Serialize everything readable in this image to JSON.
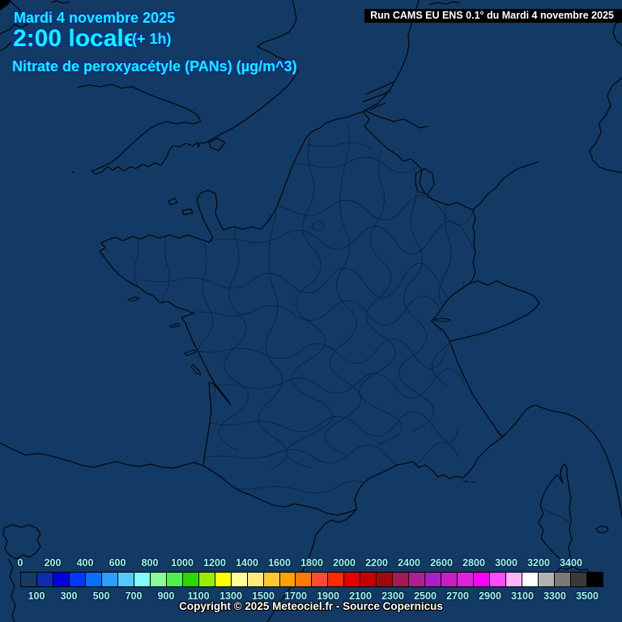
{
  "header": {
    "date": "Mardi 4 novembre 2025",
    "time": "2:00 locale",
    "offset": "(+ 1h)",
    "variable": "Nitrate de peroxyacétyle (PANs) (µg/m^3)"
  },
  "run_box": {
    "text": "Run CAMS EU ENS 0.1° du Mardi 4 novembre 2025"
  },
  "footer": {
    "copyright": "Copyright © 2025 Meteociel.fr - Source Copernicus"
  },
  "colors": {
    "background": "#123a64",
    "header_text": "#00ffff",
    "run_box_bg": "#000000",
    "run_box_text": "#ffffff",
    "legend_label": "#9ef2ee",
    "coastline": "#000000",
    "department_line": "#08223e",
    "copyright_text": "#ffffff"
  },
  "legend": {
    "unit": "µg/m^3",
    "top_labels": [
      "0",
      "200",
      "400",
      "600",
      "800",
      "1000",
      "1200",
      "1400",
      "1600",
      "1800",
      "2000",
      "2200",
      "2400",
      "2600",
      "2800",
      "3000",
      "3200",
      "3400"
    ],
    "bottom_labels": [
      "100",
      "300",
      "500",
      "700",
      "900",
      "1100",
      "1300",
      "1500",
      "1700",
      "1900",
      "2100",
      "2300",
      "2500",
      "2700",
      "2900",
      "3100",
      "3300",
      "3500"
    ],
    "palette": [
      "#123a64",
      "#0d2cb0",
      "#0001df",
      "#0139ff",
      "#0472ff",
      "#2ba1ff",
      "#55c8ff",
      "#7efcfe",
      "#89fb9b",
      "#4ef04e",
      "#2bd805",
      "#97ef00",
      "#fdff02",
      "#ffff9e",
      "#ffe97a",
      "#fec933",
      "#ffa101",
      "#ff7903",
      "#fe4c34",
      "#fe2a01",
      "#e50002",
      "#c60001",
      "#9e0a0d",
      "#a51a55",
      "#ad1f90",
      "#a81ec8",
      "#c81ec8",
      "#e020e0",
      "#fb01fb",
      "#ff4bff",
      "#ffb4fe",
      "#ffffff",
      "#b2b2b2",
      "#7a7a7a",
      "#3a3a3a",
      "#010101"
    ]
  }
}
